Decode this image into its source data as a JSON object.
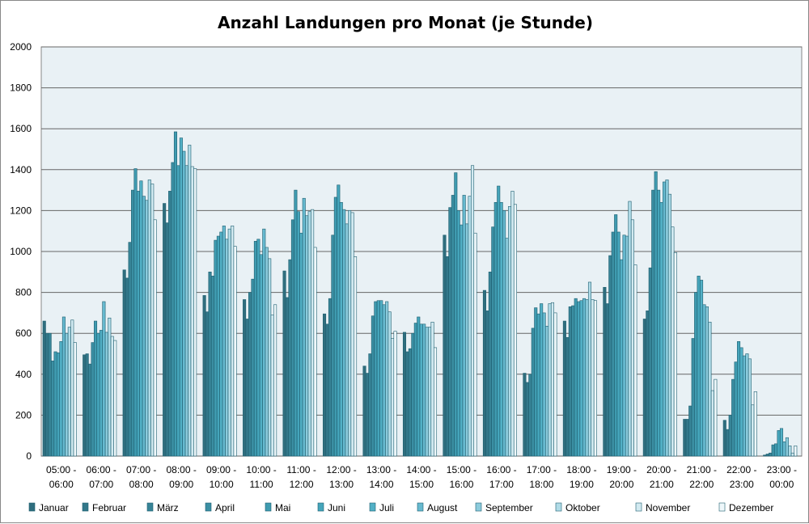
{
  "chart_data": {
    "type": "bar",
    "title": "Anzahl Landungen pro Monat (je Stunde)",
    "xlabel": "",
    "ylabel": "",
    "ylim": [
      0,
      2000
    ],
    "yticks": [
      "0",
      "200",
      "400",
      "600",
      "800",
      "1000",
      "1200",
      "1400",
      "1600",
      "1800",
      "2000"
    ],
    "grid": true,
    "legend_position": "bottom",
    "categories": [
      [
        "05:00 -",
        "06:00"
      ],
      [
        "06:00 -",
        "07:00"
      ],
      [
        "07:00 -",
        "08:00"
      ],
      [
        "08:00 -",
        "09:00"
      ],
      [
        "09:00 -",
        "10:00"
      ],
      [
        "10:00 -",
        "11:00"
      ],
      [
        "11:00 -",
        "12:00"
      ],
      [
        "12:00 -",
        "13:00"
      ],
      [
        "13:00 -",
        "14:00"
      ],
      [
        "14:00 -",
        "15:00"
      ],
      [
        "15:00 -",
        "16:00"
      ],
      [
        "16:00 -",
        "17:00"
      ],
      [
        "17:00 -",
        "18:00"
      ],
      [
        "18:00 -",
        "19:00"
      ],
      [
        "19:00 -",
        "20:00"
      ],
      [
        "20:00 -",
        "21:00"
      ],
      [
        "21:00 -",
        "22:00"
      ],
      [
        "22:00 -",
        "23:00"
      ],
      [
        "23:00 -",
        "00:00"
      ]
    ],
    "series": [
      {
        "name": "Januar",
        "color": "#2f6e7e",
        "values": [
          660,
          495,
          910,
          1235,
          785,
          765,
          905,
          695,
          440,
          605,
          1080,
          810,
          405,
          660,
          825,
          670,
          180,
          175,
          5
        ]
      },
      {
        "name": "Februar",
        "color": "#33788a",
        "values": [
          600,
          500,
          870,
          1140,
          705,
          670,
          775,
          645,
          405,
          510,
          975,
          710,
          360,
          580,
          745,
          710,
          180,
          130,
          10
        ]
      },
      {
        "name": "März",
        "color": "#378497",
        "values": [
          600,
          450,
          1045,
          1295,
          900,
          800,
          960,
          770,
          500,
          525,
          1215,
          900,
          400,
          730,
          980,
          920,
          245,
          200,
          15
        ]
      },
      {
        "name": "April",
        "color": "#3b8fa3",
        "values": [
          465,
          555,
          1300,
          1435,
          880,
          865,
          1155,
          1080,
          685,
          600,
          1275,
          1120,
          625,
          735,
          1095,
          1300,
          575,
          375,
          55
        ]
      },
      {
        "name": "Mai",
        "color": "#3f9bb0",
        "values": [
          510,
          660,
          1405,
          1585,
          1055,
          1050,
          1300,
          1265,
          755,
          650,
          1385,
          1240,
          725,
          770,
          1180,
          1390,
          800,
          460,
          60
        ]
      },
      {
        "name": "Juni",
        "color": "#45a5bb",
        "values": [
          505,
          600,
          1295,
          1420,
          1075,
          1060,
          1195,
          1325,
          760,
          680,
          1200,
          1320,
          695,
          755,
          1095,
          1300,
          880,
          560,
          125
        ]
      },
      {
        "name": "Juli",
        "color": "#52b0c6",
        "values": [
          560,
          615,
          1345,
          1555,
          1095,
          985,
          1090,
          1240,
          760,
          645,
          1130,
          1240,
          745,
          760,
          960,
          1240,
          860,
          530,
          135
        ]
      },
      {
        "name": "August",
        "color": "#67bad0",
        "values": [
          680,
          755,
          1270,
          1490,
          1125,
          1110,
          1260,
          1205,
          740,
          645,
          1275,
          1200,
          700,
          770,
          1080,
          1340,
          740,
          490,
          70
        ]
      },
      {
        "name": "September",
        "color": "#8ccbdc",
        "values": [
          600,
          605,
          1250,
          1420,
          1060,
          1020,
          1175,
          1135,
          755,
          630,
          1135,
          1065,
          635,
          765,
          1075,
          1350,
          730,
          500,
          90
        ]
      },
      {
        "name": "Oktober",
        "color": "#b0dbe7",
        "values": [
          630,
          675,
          1350,
          1520,
          1110,
          965,
          1195,
          1200,
          705,
          630,
          1270,
          1220,
          745,
          850,
          1245,
          1280,
          655,
          475,
          50
        ]
      },
      {
        "name": "November",
        "color": "#d2eaf1",
        "values": [
          665,
          585,
          1330,
          1415,
          1125,
          690,
          1205,
          1190,
          575,
          655,
          1420,
          1295,
          750,
          765,
          1155,
          1120,
          320,
          250,
          15
        ]
      },
      {
        "name": "Dezember",
        "color": "#eef7fa",
        "values": [
          555,
          565,
          1155,
          1405,
          1025,
          740,
          1020,
          975,
          610,
          530,
          1090,
          1230,
          700,
          760,
          935,
          995,
          375,
          315,
          50
        ]
      }
    ]
  }
}
